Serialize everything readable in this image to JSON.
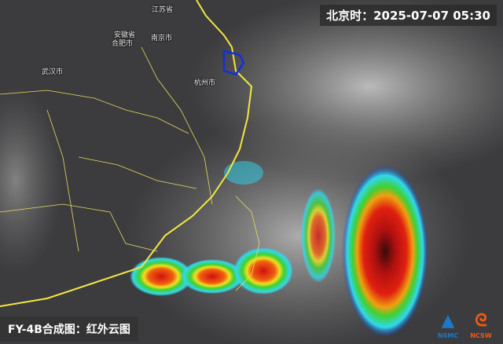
{
  "header": {
    "timestamp": "北京时：2025-07-07 05:30"
  },
  "caption": "FY-4B合成图：红外云图",
  "cities": [
    "江苏省",
    "安徽省",
    "合肥市",
    "南京市",
    "武汉市",
    "杭州市"
  ],
  "logos": [
    {
      "text": "NSMC",
      "icon": "nsmc-triangle-logo",
      "color": "#1e78c8"
    },
    {
      "text": "NCSW",
      "icon": "ncsw-flame-logo",
      "color": "#f05a14"
    }
  ],
  "colors": {
    "border": "#f2e640",
    "coast": "#f2e640",
    "cold_cloud": "#d01010",
    "mid_cloud": "#30d030",
    "cyan": "#30e0f0",
    "blue": "#1030c0"
  }
}
